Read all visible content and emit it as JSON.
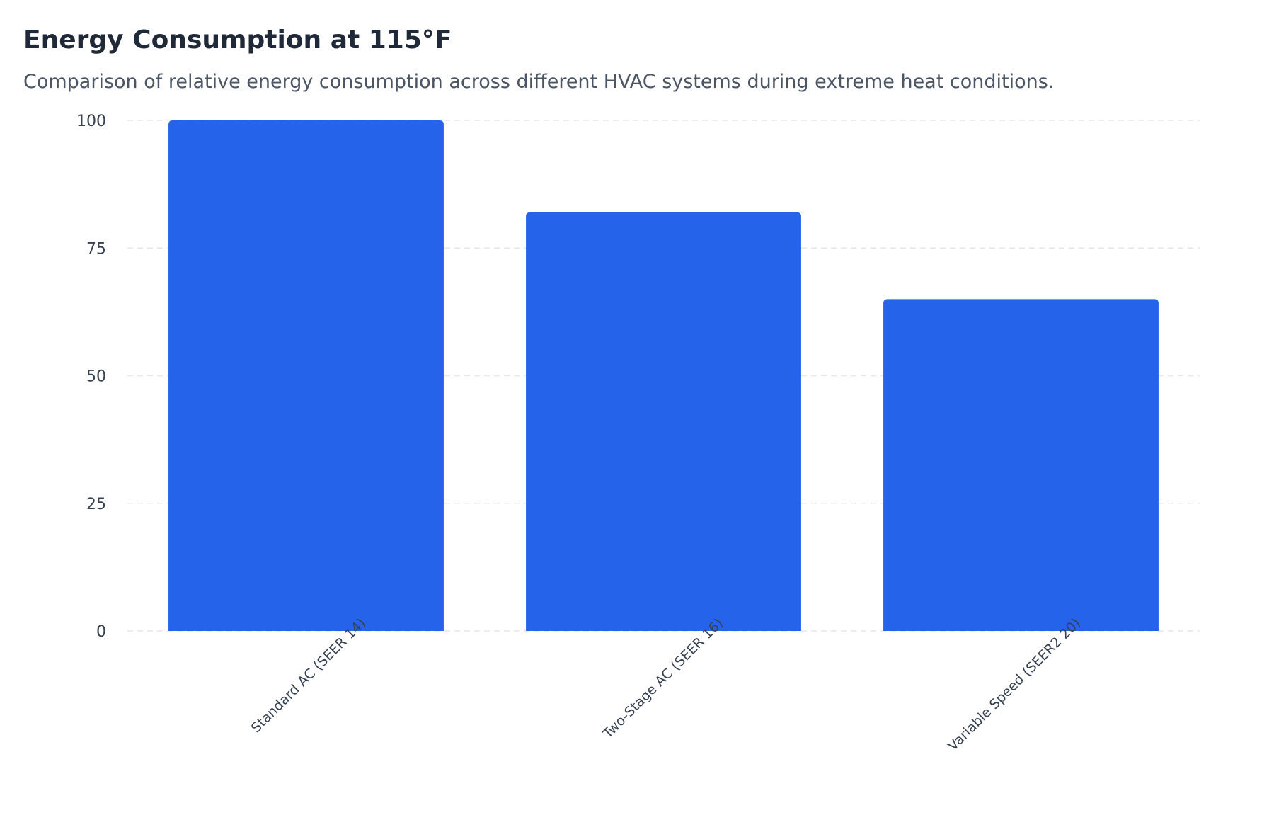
{
  "header": {
    "title": "Energy Consumption at 115°F",
    "subtitle": "Comparison of relative energy consumption across different HVAC systems during extreme heat conditions."
  },
  "colors": {
    "bar": "#2563eb",
    "grid": "#e5e7eb",
    "title": "#1f2937",
    "subtitle": "#4b5563",
    "tick": "#374151"
  },
  "chart_data": {
    "type": "bar",
    "categories": [
      "Standard AC (SEER 14)",
      "Two-Stage AC (SEER 16)",
      "Variable Speed (SEER2 20)"
    ],
    "values": [
      100,
      82,
      65
    ],
    "yticks": [
      0,
      25,
      50,
      75,
      100
    ],
    "ylim": [
      0,
      100
    ],
    "xlabel": "",
    "ylabel": "",
    "grid": true,
    "legend": "none"
  }
}
